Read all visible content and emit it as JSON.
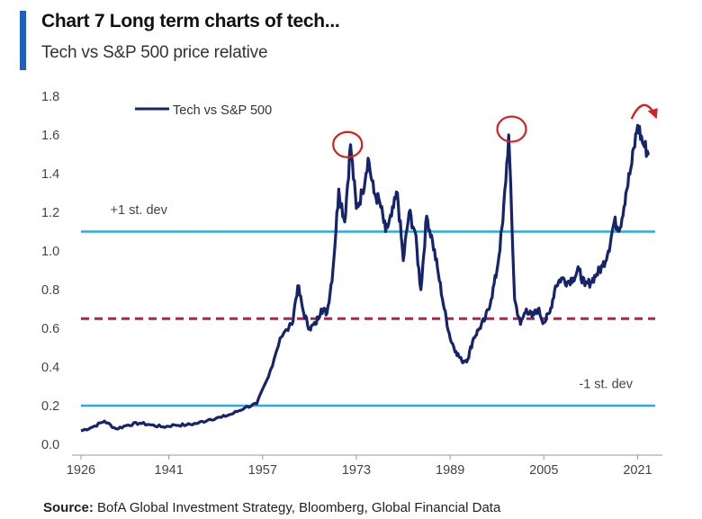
{
  "header": {
    "title": "Chart 7 Long term charts of tech...",
    "subtitle": "Tech vs S&P 500 price relative"
  },
  "source": {
    "label": "Source:",
    "text": "BofA Global Investment Strategy, Bloomberg, Global Financial Data"
  },
  "colors": {
    "series": "#16246b",
    "stdev_line": "#29abe2",
    "mean_line": "#b8204a",
    "highlight": "#d32020",
    "accent": "#1f5fbf"
  },
  "chart_data": {
    "type": "line",
    "title": "Tech vs S&P 500 price relative",
    "xlabel": "",
    "ylabel": "",
    "xlim": [
      1926,
      2024
    ],
    "ylim": [
      0,
      1.8
    ],
    "x_ticks": [
      1926,
      1941,
      1957,
      1973,
      1989,
      2005,
      2021
    ],
    "y_ticks": [
      "0.0",
      "0.2",
      "0.4",
      "0.6",
      "0.8",
      "1.0",
      "1.2",
      "1.4",
      "1.6",
      "1.8"
    ],
    "legend": {
      "position": "top-left",
      "entries": [
        "Tech vs  S&P 500"
      ]
    },
    "series": [
      {
        "name": "Tech vs  S&P 500",
        "x": [
          1926,
          1928,
          1930,
          1932,
          1934,
          1936,
          1938,
          1940,
          1942,
          1944,
          1946,
          1948,
          1950,
          1952,
          1954,
          1956,
          1958,
          1960,
          1962,
          1963,
          1964,
          1965,
          1966,
          1967,
          1968,
          1969,
          1970,
          1971,
          1972,
          1973,
          1974,
          1975,
          1976,
          1977,
          1978,
          1979,
          1980,
          1981,
          1982,
          1983,
          1984,
          1985,
          1986,
          1987,
          1988,
          1989,
          1990,
          1991,
          1992,
          1993,
          1994,
          1995,
          1996,
          1997,
          1998,
          1999,
          2000,
          2001,
          2002,
          2003,
          2004,
          2005,
          2006,
          2007,
          2008,
          2009,
          2010,
          2011,
          2012,
          2013,
          2014,
          2015,
          2016,
          2017,
          2018,
          2019,
          2020,
          2021,
          2022,
          2023
        ],
        "values": [
          0.07,
          0.09,
          0.12,
          0.08,
          0.1,
          0.11,
          0.1,
          0.09,
          0.1,
          0.1,
          0.11,
          0.13,
          0.14,
          0.16,
          0.19,
          0.21,
          0.35,
          0.55,
          0.62,
          0.82,
          0.68,
          0.6,
          0.62,
          0.7,
          0.68,
          0.9,
          1.32,
          1.15,
          1.55,
          1.22,
          1.3,
          1.48,
          1.3,
          1.25,
          1.1,
          1.18,
          1.3,
          0.95,
          1.2,
          1.1,
          0.8,
          1.18,
          1.05,
          0.88,
          0.7,
          0.55,
          0.48,
          0.43,
          0.44,
          0.55,
          0.6,
          0.65,
          0.75,
          0.9,
          1.15,
          1.6,
          0.75,
          0.62,
          0.7,
          0.66,
          0.7,
          0.63,
          0.68,
          0.82,
          0.86,
          0.84,
          0.86,
          0.9,
          0.82,
          0.84,
          0.88,
          0.92,
          1.0,
          1.15,
          1.12,
          1.3,
          1.45,
          1.65,
          1.55,
          1.5
        ]
      }
    ],
    "reference_lines": [
      {
        "name": "+1 st. dev",
        "label": "+1 st. dev",
        "value": 1.1,
        "style": "solid",
        "label_x": 1931,
        "label_y": 1.19
      },
      {
        "name": "mean",
        "label": "",
        "value": 0.65,
        "style": "dashed"
      },
      {
        "name": "-1 st. dev",
        "label": "-1 st. dev",
        "value": 0.2,
        "style": "solid",
        "label_x": 2011,
        "label_y": 0.29
      }
    ],
    "annotations": [
      {
        "type": "circle",
        "x": 1971.5,
        "y": 1.55
      },
      {
        "type": "circle",
        "x": 1999.5,
        "y": 1.63
      },
      {
        "type": "arrow",
        "x": 2021.5,
        "y": 1.72
      }
    ]
  }
}
